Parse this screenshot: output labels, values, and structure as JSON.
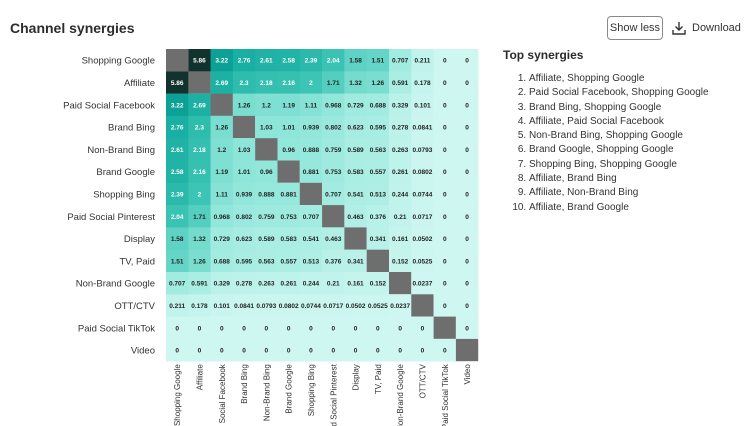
{
  "header": {
    "title": "Channel synergies",
    "show_less_label": "Show less",
    "download_label": "Download"
  },
  "top_synergies": {
    "title": "Top synergies",
    "items": [
      "Affiliate, Shopping Google",
      "Paid Social Facebook, Shopping Google",
      "Brand Bing, Shopping Google",
      "Affiliate, Paid Social Facebook",
      "Non-Brand Bing, Shopping Google",
      "Brand Google, Shopping Google",
      "Shopping Bing, Shopping Google",
      "Affiliate, Brand Bing",
      "Affiliate, Non-Brand Bing",
      "Affiliate, Brand Google"
    ]
  },
  "chart_data": {
    "type": "heatmap",
    "row_labels": [
      "Shopping Google",
      "Affiliate",
      "Paid Social Facebook",
      "Brand Bing",
      "Non-Brand Bing",
      "Brand Google",
      "Shopping Bing",
      "Paid Social Pinterest",
      "Display",
      "TV, Paid",
      "Non-Brand Google",
      "OTT/CTV",
      "Paid Social TikTok",
      "Video"
    ],
    "col_labels": [
      "Shopping Google",
      "Affiliate",
      "Paid Social Facebook",
      "Brand Bing",
      "Non-Brand Bing",
      "Brand Google",
      "Shopping Bing",
      "Paid Social Pinterest",
      "Display",
      "TV, Paid",
      "Non-Brand Google",
      "OTT/CTV",
      "Paid Social TikTok",
      "Video"
    ],
    "upper_triangle": [
      [
        5.86,
        3.22,
        2.76,
        2.61,
        2.58,
        2.39,
        2.04,
        1.58,
        1.51,
        0.707,
        0.211,
        0,
        0
      ],
      [
        2.69,
        2.3,
        2.18,
        2.16,
        2,
        1.71,
        1.32,
        1.26,
        0.591,
        0.178,
        0,
        0
      ],
      [
        1.26,
        1.2,
        1.19,
        1.11,
        0.968,
        0.729,
        0.688,
        0.329,
        0.101,
        0,
        0
      ],
      [
        1.03,
        1.01,
        0.939,
        0.802,
        0.623,
        0.595,
        0.278,
        0.0841,
        0,
        0
      ],
      [
        0.96,
        0.888,
        0.759,
        0.589,
        0.563,
        0.263,
        0.0793,
        0,
        0
      ],
      [
        0.881,
        0.753,
        0.583,
        0.557,
        0.261,
        0.0802,
        0,
        0
      ],
      [
        0.707,
        0.541,
        0.513,
        0.244,
        0.0744,
        0,
        0
      ],
      [
        0.463,
        0.376,
        0.21,
        0.0717,
        0,
        0
      ],
      [
        0.341,
        0.161,
        0.0502,
        0,
        0
      ],
      [
        0.152,
        0.0525,
        0,
        0
      ],
      [
        0.0237,
        0,
        0
      ],
      [
        0,
        0
      ],
      [
        0
      ]
    ],
    "symmetric": true,
    "diagonal": "blank",
    "colors": {
      "low": "#cff7f1",
      "mid": "#0ea89c",
      "high": "#12322e",
      "diagonal": "#6e6e6e"
    }
  }
}
